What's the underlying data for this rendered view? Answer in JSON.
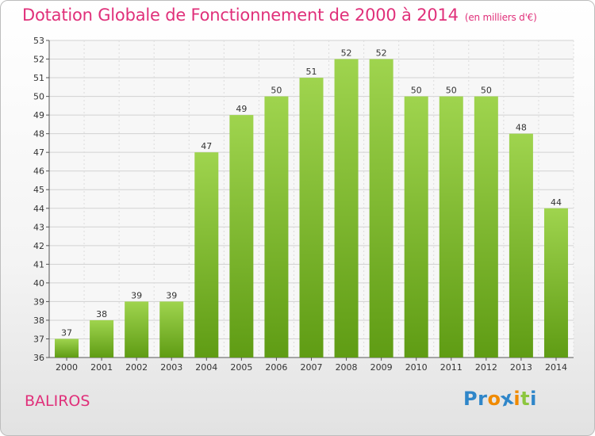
{
  "title": "Dotation Globale de Fonctionnement de 2000 à 2014",
  "subtitle": "(en milliers d'€)",
  "commune": "BALIROS",
  "logo": {
    "letters": [
      "P",
      "r",
      "o",
      "x",
      "i",
      "t",
      "i"
    ],
    "colors": [
      "#2f86c9",
      "#2f86c9",
      "#f08a00",
      "#2f86c9",
      "#f08a00",
      "#8cc63f",
      "#2f86c9"
    ]
  },
  "colors": {
    "accent": "#e0307a",
    "bar_top": "#9fd44e",
    "bar_bottom": "#5f9c14"
  },
  "chart_data": {
    "type": "bar",
    "title": "Dotation Globale de Fonctionnement de 2000 à 2014",
    "subtitle": "(en milliers d'€)",
    "categories": [
      "2000",
      "2001",
      "2002",
      "2003",
      "2004",
      "2005",
      "2006",
      "2007",
      "2008",
      "2009",
      "2010",
      "2011",
      "2012",
      "2013",
      "2014"
    ],
    "values": [
      37,
      38,
      39,
      39,
      47,
      49,
      50,
      51,
      52,
      52,
      50,
      50,
      50,
      48,
      44
    ],
    "ylim": [
      36,
      53
    ],
    "yticks": [
      36,
      37,
      38,
      39,
      40,
      41,
      42,
      43,
      44,
      45,
      46,
      47,
      48,
      49,
      50,
      51,
      52,
      53
    ],
    "grid": true,
    "xlabel": "",
    "ylabel": ""
  }
}
